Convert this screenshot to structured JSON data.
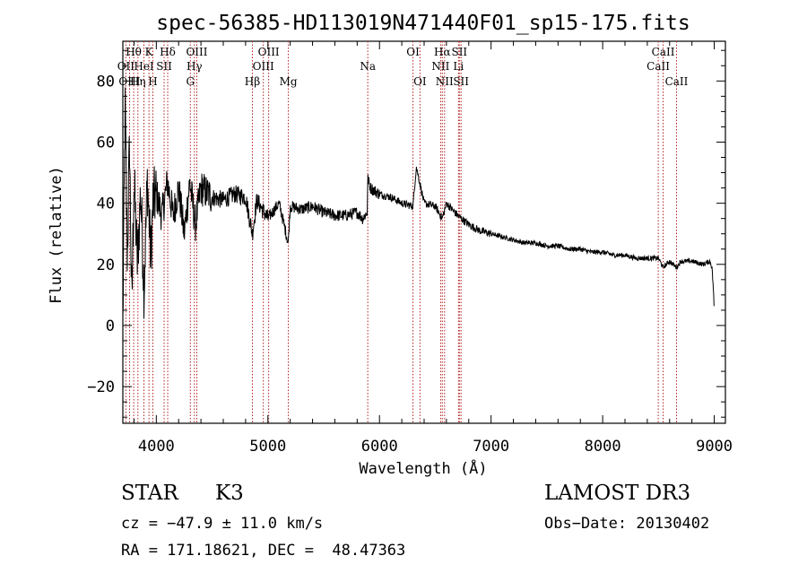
{
  "chart_data": {
    "type": "line",
    "title": "spec-56385-HD113019N471440F01_sp15-175.fits",
    "xlabel": "Wavelength (Å)",
    "ylabel": "Flux (relative)",
    "xlim": [
      3700,
      9100
    ],
    "ylim": [
      -32,
      93
    ],
    "xticks": [
      4000,
      5000,
      6000,
      7000,
      8000,
      9000
    ],
    "yticks": [
      -20,
      0,
      20,
      40,
      60,
      80
    ],
    "xtick_labels": [
      "4000",
      "5000",
      "6000",
      "7000",
      "8000",
      "9000"
    ],
    "ytick_labels": [
      "−20",
      "0",
      "20",
      "40",
      "60",
      "80"
    ],
    "series": [
      {
        "name": "flux",
        "x": [
          3700,
          3720,
          3740,
          3760,
          3780,
          3800,
          3830,
          3860,
          3890,
          3920,
          3950,
          3970,
          4000,
          4050,
          4100,
          4150,
          4200,
          4250,
          4300,
          4350,
          4400,
          4500,
          4600,
          4700,
          4800,
          4861,
          4900,
          5000,
          5100,
          5183,
          5200,
          5300,
          5400,
          5500,
          5600,
          5700,
          5800,
          5850,
          5890,
          5895,
          5920,
          6000,
          6100,
          6200,
          6300,
          6330,
          6400,
          6500,
          6563,
          6600,
          6700,
          6800,
          6900,
          7000,
          7100,
          7200,
          7300,
          7400,
          7500,
          7600,
          7700,
          7800,
          7900,
          8000,
          8100,
          8200,
          8300,
          8400,
          8500,
          8542,
          8600,
          8662,
          8700,
          8800,
          8900,
          8960,
          8980,
          8995,
          9000
        ],
        "y": [
          0,
          72,
          22,
          60,
          5,
          48,
          20,
          44,
          12,
          48,
          22,
          40,
          43,
          36,
          47,
          36,
          45,
          30,
          47,
          33,
          45,
          42,
          41,
          43,
          42,
          30,
          41,
          35,
          40,
          27,
          39,
          38,
          39,
          37,
          36,
          36,
          37,
          35,
          37,
          48,
          45,
          43,
          42,
          40,
          39,
          52,
          40,
          39,
          35,
          40,
          36,
          33,
          31,
          30,
          29,
          28,
          27,
          27,
          26,
          26,
          25,
          25,
          24,
          24,
          23,
          23,
          22,
          22,
          22,
          19,
          21,
          19,
          21,
          21,
          20,
          21,
          19,
          10,
          3
        ]
      }
    ],
    "lines": [
      {
        "label": "Hθ",
        "x": 3797,
        "row": 1
      },
      {
        "label": "OII",
        "x": 3727,
        "row": 2
      },
      {
        "label": "OIII",
        "x": 3760,
        "row": 3
      },
      {
        "label": "Hη",
        "x": 3835,
        "row": 3
      },
      {
        "label": "HeI",
        "x": 3889,
        "row": 2
      },
      {
        "label": "K",
        "x": 3934,
        "row": 1
      },
      {
        "label": "H",
        "x": 3969,
        "row": 3
      },
      {
        "label": "SII",
        "x": 4070,
        "row": 2
      },
      {
        "label": "Hδ",
        "x": 4102,
        "row": 1
      },
      {
        "label": "Hγ",
        "x": 4341,
        "row": 2
      },
      {
        "label": "G",
        "x": 4305,
        "row": 3
      },
      {
        "label": "OIII",
        "x": 4363,
        "row": 1
      },
      {
        "label": "Hβ",
        "x": 4861,
        "row": 3
      },
      {
        "label": "OIII",
        "x": 5007,
        "row": 1
      },
      {
        "label": "OIII",
        "x": 4959,
        "row": 2
      },
      {
        "label": "Mg",
        "x": 5183,
        "row": 3
      },
      {
        "label": "Na",
        "x": 5895,
        "row": 2
      },
      {
        "label": "OI",
        "x": 6300,
        "row": 1
      },
      {
        "label": "OI",
        "x": 6363,
        "row": 3
      },
      {
        "label": "Hα",
        "x": 6563,
        "row": 1
      },
      {
        "label": "NII",
        "x": 6548,
        "row": 2
      },
      {
        "label": "NII",
        "x": 6583,
        "row": 3
      },
      {
        "label": "SII",
        "x": 6716,
        "row": 1
      },
      {
        "label": "Li",
        "x": 6708,
        "row": 2
      },
      {
        "label": "SII",
        "x": 6731,
        "row": 3
      },
      {
        "label": "CaII",
        "x": 8542,
        "row": 1
      },
      {
        "label": "CaII",
        "x": 8498,
        "row": 2
      },
      {
        "label": "CaII",
        "x": 8662,
        "row": 3
      }
    ]
  },
  "info": {
    "object_class": "STAR",
    "subclass": "K3",
    "survey": "LAMOST DR3",
    "cz": "cz = −47.9 ± 11.0 km/s",
    "obs_date": "Obs−Date: 20130402",
    "coords": "RA = 171.18621, DEC =  48.47363"
  },
  "colors": {
    "line_marker": "#b22222",
    "spectrum": "#000000"
  }
}
